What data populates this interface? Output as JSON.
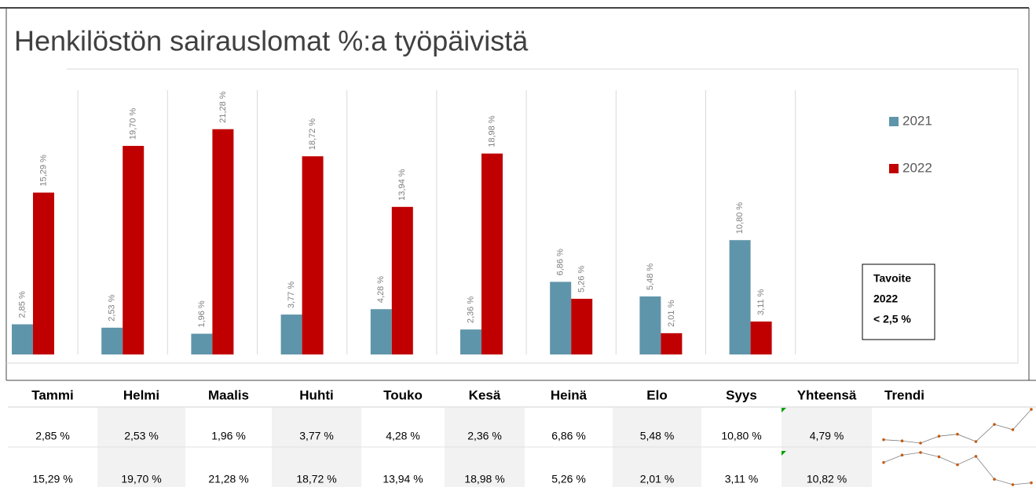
{
  "chart_data": {
    "type": "bar",
    "title": "Henkilöstön sairauslomat %:a työpäivistä",
    "categories": [
      "Tammi",
      "Helmi",
      "Maalis",
      "Huhti",
      "Touko",
      "Kesä",
      "Heinä",
      "Elo",
      "Syys"
    ],
    "series": [
      {
        "name": "2021",
        "color": "#5f95aa",
        "values": [
          2.85,
          2.53,
          1.96,
          3.77,
          4.28,
          2.36,
          6.86,
          5.48,
          10.8
        ],
        "value_labels": [
          "2,85 %",
          "2,53 %",
          "1,96 %",
          "3,77 %",
          "4,28 %",
          "2,36 %",
          "6,86 %",
          "5,48 %",
          "10,80 %"
        ]
      },
      {
        "name": "2022",
        "color": "#c00000",
        "values": [
          15.29,
          19.7,
          21.28,
          18.72,
          13.94,
          18.98,
          5.26,
          2.01,
          3.11
        ],
        "value_labels": [
          "15,29 %",
          "19,70 %",
          "21,28 %",
          "18,72 %",
          "13,94 %",
          "18,98 %",
          "5,26 %",
          "2,01 %",
          "3,11 %"
        ]
      }
    ],
    "annotation": [
      "Tavoite",
      "2022",
      "< 2,5 %"
    ],
    "legend": "right"
  },
  "table": {
    "extra_headers": [
      "Yhteensä",
      "Trendi"
    ],
    "rows": [
      [
        "2,85 %",
        "2,53 %",
        "1,96 %",
        "3,77 %",
        "4,28 %",
        "2,36 %",
        "6,86 %",
        "5,48 %",
        "10,80 %",
        "4,79 %"
      ],
      [
        "15,29 %",
        "19,70 %",
        "21,28 %",
        "18,72 %",
        "13,94 %",
        "18,98 %",
        "5,26 %",
        "2,01 %",
        "3,11 %",
        "10,82 %"
      ]
    ]
  }
}
